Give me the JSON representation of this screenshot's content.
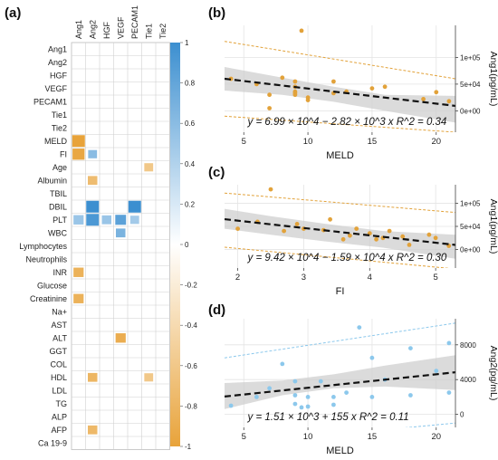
{
  "panels": {
    "a": "(a)",
    "b": "(b)",
    "c": "(c)",
    "d": "(d)"
  },
  "colors": {
    "negative": "#E8A33A",
    "positive": "#3C8FD0",
    "ang1_points": "#E2A23A",
    "ang2_points": "#8CC8EC",
    "band": "#CFCFCF",
    "fit_line": "#111111",
    "grid": "#E4E4E4"
  },
  "chart_data": [
    {
      "type": "heatmap",
      "panel": "(a)",
      "columns": [
        "Ang1",
        "Ang2",
        "HGF",
        "VEGF",
        "PECAM1",
        "Tie1",
        "Tie2"
      ],
      "rows": [
        "Ang1",
        "Ang2",
        "HGF",
        "VEGF",
        "PECAM1",
        "Tie1",
        "Tie2",
        "MELD",
        "FI",
        "Age",
        "Albumin",
        "TBIL",
        "DBIL",
        "PLT",
        "WBC",
        "Lymphocytes",
        "Neutrophils",
        "INR",
        "Glucose",
        "Creatinine",
        "Na+",
        "AST",
        "ALT",
        "GGT",
        "COL",
        "HDL",
        "LDL",
        "TG",
        "ALP",
        "AFP",
        "Ca 19-9"
      ],
      "colorbar": {
        "min": -1,
        "max": 1,
        "ticks": [
          "1",
          "0.8",
          "0.6",
          "0.4",
          "0.2",
          "0",
          "-0.2",
          "-0.4",
          "-0.6",
          "-0.8",
          "-1"
        ]
      },
      "cells": [
        {
          "row": "MELD",
          "col": "Ang1",
          "r": -0.55,
          "size": 1.0
        },
        {
          "row": "FI",
          "col": "Ang1",
          "r": -0.52,
          "size": 0.95
        },
        {
          "row": "FI",
          "col": "Ang2",
          "r": 0.3,
          "size": 0.7
        },
        {
          "row": "Age",
          "col": "Tie1",
          "r": -0.3,
          "size": 0.7
        },
        {
          "row": "Albumin",
          "col": "Ang2",
          "r": -0.38,
          "size": 0.75
        },
        {
          "row": "DBIL",
          "col": "Ang2",
          "r": 0.55,
          "size": 1.0
        },
        {
          "row": "DBIL",
          "col": "PECAM1",
          "r": 0.58,
          "size": 1.0
        },
        {
          "row": "PLT",
          "col": "Ang1",
          "r": 0.25,
          "size": 0.8
        },
        {
          "row": "PLT",
          "col": "Ang2",
          "r": 0.5,
          "size": 1.0
        },
        {
          "row": "PLT",
          "col": "HGF",
          "r": 0.25,
          "size": 0.75
        },
        {
          "row": "PLT",
          "col": "VEGF",
          "r": 0.45,
          "size": 0.85
        },
        {
          "row": "PLT",
          "col": "PECAM1",
          "r": 0.22,
          "size": 0.7
        },
        {
          "row": "WBC",
          "col": "VEGF",
          "r": 0.35,
          "size": 0.75
        },
        {
          "row": "INR",
          "col": "Ang1",
          "r": -0.45,
          "size": 0.8
        },
        {
          "row": "Creatinine",
          "col": "Ang1",
          "r": -0.45,
          "size": 0.8
        },
        {
          "row": "ALT",
          "col": "VEGF",
          "r": -0.48,
          "size": 0.8
        },
        {
          "row": "HDL",
          "col": "Ang2",
          "r": -0.42,
          "size": 0.75
        },
        {
          "row": "HDL",
          "col": "Tie1",
          "r": -0.3,
          "size": 0.7
        },
        {
          "row": "AFP",
          "col": "Ang2",
          "r": -0.4,
          "size": 0.75
        }
      ]
    },
    {
      "type": "scatter",
      "panel": "(b)",
      "xlabel": "MELD",
      "ylabel": "Ang1(pg/mL)",
      "x_ticks": [
        5,
        10,
        15,
        20
      ],
      "y_ticks": [
        0,
        50000,
        100000
      ],
      "y_tick_labels": [
        "0e+00",
        "5e+04",
        "1e+05"
      ],
      "xlim": [
        3.5,
        21.5
      ],
      "ylim": [
        -40000,
        160000
      ],
      "equation": "y = 6.99 × 10^4 − 2.82 × 10^3 x R^2 = 0.34",
      "fit": {
        "intercept": 69900,
        "slope": -2820
      },
      "band": {
        "x": [
          3.5,
          8,
          12,
          16,
          21.5
        ],
        "lo": [
          38000,
          30000,
          17000,
          0,
          -22000
        ],
        "hi": [
          82000,
          62000,
          45000,
          30000,
          28000
        ]
      },
      "pred": {
        "x": [
          3.5,
          21.5
        ],
        "lo": [
          -10000,
          -40000
        ],
        "hi": [
          130000,
          60000
        ]
      },
      "points": [
        [
          4,
          60000
        ],
        [
          6,
          50000
        ],
        [
          7,
          5000
        ],
        [
          7,
          30000
        ],
        [
          8,
          62000
        ],
        [
          9,
          55000
        ],
        [
          9,
          45000
        ],
        [
          9,
          36000
        ],
        [
          9,
          33000
        ],
        [
          9,
          30000
        ],
        [
          9.5,
          150000
        ],
        [
          10,
          25000
        ],
        [
          10,
          20000
        ],
        [
          12,
          55000
        ],
        [
          12,
          33000
        ],
        [
          13,
          36000
        ],
        [
          15,
          42000
        ],
        [
          16,
          45000
        ],
        [
          19,
          22000
        ],
        [
          20,
          35000
        ],
        [
          21,
          18000
        ]
      ]
    },
    {
      "type": "scatter",
      "panel": "(c)",
      "xlabel": "FI",
      "ylabel": "Ang1(pg/mL)",
      "x_ticks": [
        2,
        3,
        4,
        5
      ],
      "y_ticks": [
        0,
        50000,
        100000
      ],
      "y_tick_labels": [
        "0e+00",
        "5e+04",
        "1e+05"
      ],
      "xlim": [
        1.8,
        5.3
      ],
      "ylim": [
        -40000,
        140000
      ],
      "equation": "y = 9.42 × 10^4 − 1.59 × 10^4 x R^2 = 0.30",
      "fit": {
        "intercept": 94200,
        "slope": -15900
      },
      "band": {
        "x": [
          1.8,
          2.5,
          3.3,
          4.2,
          5.3
        ],
        "lo": [
          45000,
          32000,
          18000,
          4000,
          -20000
        ],
        "hi": [
          88000,
          72000,
          56000,
          40000,
          32000
        ]
      },
      "pred": {
        "x": [
          1.8,
          5.3
        ],
        "lo": [
          5000,
          -42000
        ],
        "hi": [
          122000,
          80000
        ]
      },
      "points": [
        [
          2.0,
          45000
        ],
        [
          2.3,
          60000
        ],
        [
          2.5,
          130000
        ],
        [
          2.7,
          40000
        ],
        [
          2.9,
          55000
        ],
        [
          3.0,
          45000
        ],
        [
          3.3,
          42000
        ],
        [
          3.4,
          65000
        ],
        [
          3.6,
          22000
        ],
        [
          3.7,
          30000
        ],
        [
          3.8,
          45000
        ],
        [
          4.0,
          35000
        ],
        [
          4.1,
          22000
        ],
        [
          4.2,
          25000
        ],
        [
          4.3,
          40000
        ],
        [
          4.5,
          28000
        ],
        [
          4.6,
          10000
        ],
        [
          4.9,
          32000
        ],
        [
          5.0,
          25000
        ],
        [
          5.2,
          8000
        ]
      ]
    },
    {
      "type": "scatter",
      "panel": "(d)",
      "xlabel": "MELD",
      "ylabel": "Ang2(pg/mL)",
      "x_ticks": [
        5,
        10,
        15,
        20
      ],
      "y_ticks": [
        0,
        4000,
        8000
      ],
      "y_tick_labels": [
        "0",
        "4000",
        "8000"
      ],
      "xlim": [
        3.5,
        21.5
      ],
      "ylim": [
        -1500,
        11000
      ],
      "equation": "y = 1.51 × 10^3 + 155 x R^2 = 0.11",
      "fit": {
        "intercept": 1510,
        "slope": 155
      },
      "band": {
        "x": [
          3.5,
          8,
          12,
          16,
          21.5
        ],
        "lo": [
          600,
          2200,
          3000,
          3200,
          2800
        ],
        "hi": [
          3600,
          3900,
          4600,
          5600,
          6800
        ]
      },
      "pred": {
        "x": [
          3.5,
          21.5
        ],
        "lo": [
          -3500,
          -1000
        ],
        "hi": [
          6500,
          10500
        ]
      },
      "points": [
        [
          4,
          1000
        ],
        [
          6,
          2000
        ],
        [
          7,
          3000
        ],
        [
          8,
          5800
        ],
        [
          9,
          1200
        ],
        [
          9,
          2200
        ],
        [
          9,
          3800
        ],
        [
          9.5,
          800
        ],
        [
          10,
          900
        ],
        [
          10,
          2000
        ],
        [
          11,
          3800
        ],
        [
          12,
          1100
        ],
        [
          12,
          2000
        ],
        [
          13,
          2500
        ],
        [
          14,
          10000
        ],
        [
          15,
          2000
        ],
        [
          15,
          6500
        ],
        [
          16,
          4000
        ],
        [
          18,
          7600
        ],
        [
          18,
          2200
        ],
        [
          20,
          5000
        ],
        [
          21,
          8200
        ],
        [
          21,
          2500
        ]
      ]
    }
  ]
}
